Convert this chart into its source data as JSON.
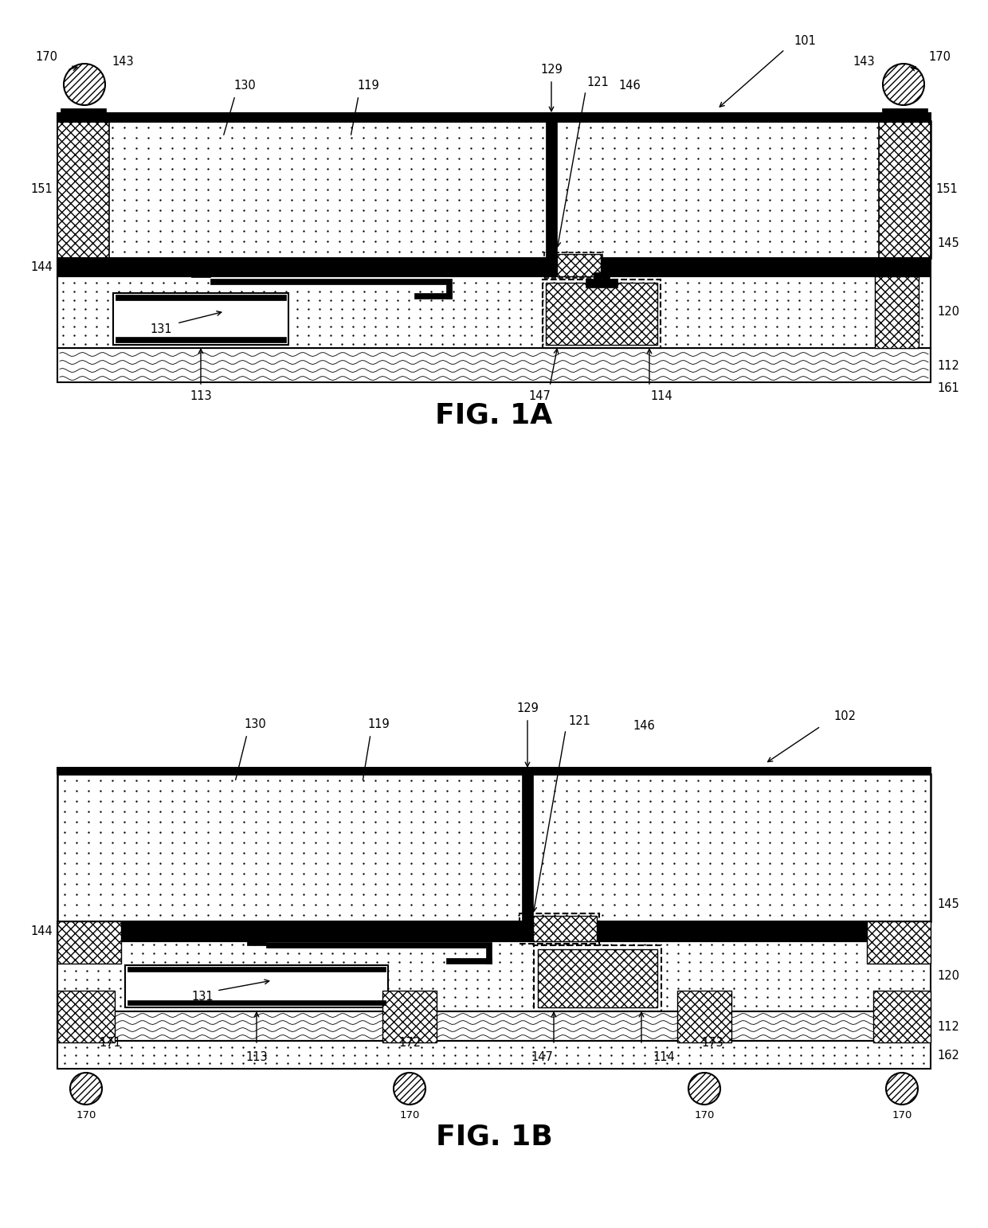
{
  "fig_width": 12.4,
  "fig_height": 15.42,
  "dpi": 100,
  "bg_color": "#ffffff"
}
